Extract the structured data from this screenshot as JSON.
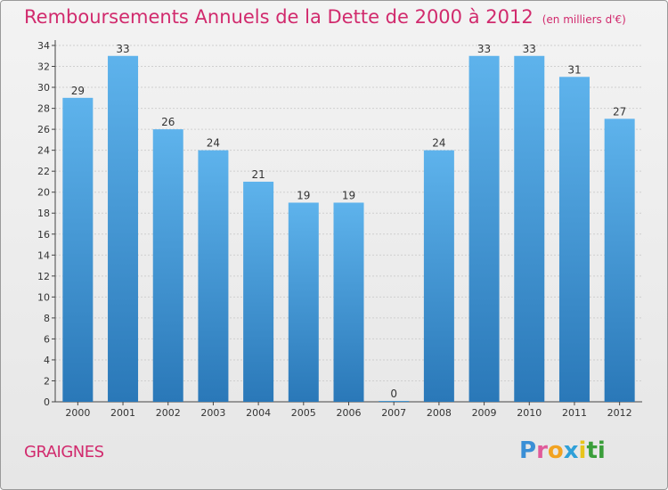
{
  "title": "Remboursements Annuels de la Dette de 2000 à 2012",
  "subtitle": "(en milliers d'€)",
  "commune": "GRAIGNES",
  "logo_letters": [
    "P",
    "r",
    "o",
    "x",
    "i",
    "t",
    "i"
  ],
  "logo_colors": [
    "#3a8fd6",
    "#e05a9a",
    "#f2a321",
    "#2fa0d8",
    "#e8c41b",
    "#3a9e3a",
    "#3a9e3a"
  ],
  "colors": {
    "title": "#d12a6d",
    "bar_top": "#5eb3ec",
    "bar_bottom": "#2a78b8",
    "axis": "#444444",
    "grid": "#cfcfcf"
  },
  "chart_data": {
    "type": "bar",
    "categories": [
      "2000",
      "2001",
      "2002",
      "2003",
      "2004",
      "2005",
      "2006",
      "2007",
      "2008",
      "2009",
      "2010",
      "2011",
      "2012"
    ],
    "values": [
      29,
      33,
      26,
      24,
      21,
      19,
      19,
      0,
      24,
      33,
      33,
      31,
      27
    ],
    "data_labels": [
      "29",
      "33",
      "26",
      "24",
      "21",
      "19",
      "19",
      "0",
      "24",
      "33",
      "33",
      "31",
      "27"
    ],
    "yticks": [
      "0",
      "2",
      "4",
      "6",
      "8",
      "10",
      "12",
      "14",
      "16",
      "18",
      "20",
      "22",
      "24",
      "26",
      "28",
      "30",
      "32",
      "34"
    ],
    "ylim": [
      0,
      34
    ],
    "grid": true
  }
}
